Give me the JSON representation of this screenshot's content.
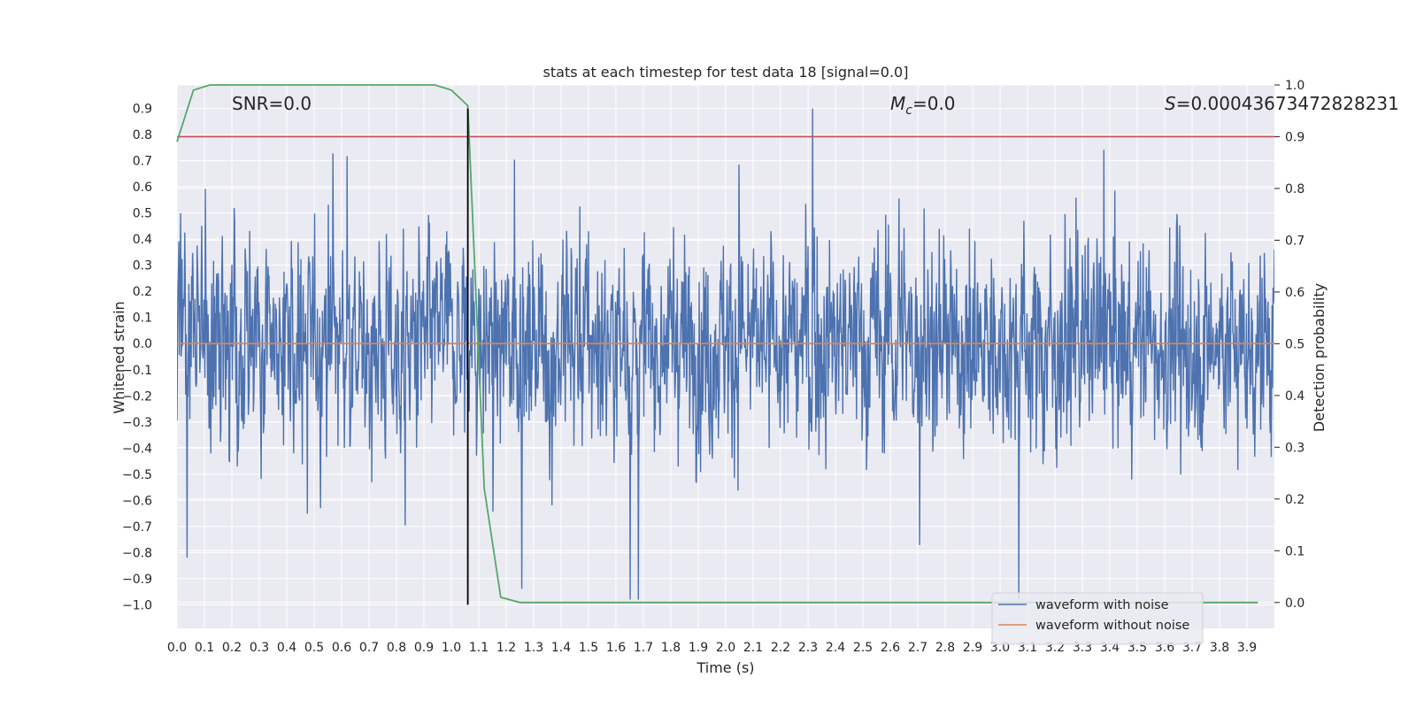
{
  "chart_data": {
    "type": "line",
    "title": "stats at each timestep for test data 18 [signal=0.0]",
    "xlabel": "Time (s)",
    "ylabel_left": "Whitened strain",
    "ylabel_right": "Detection probability",
    "xlim": [
      0.0,
      4.0
    ],
    "ylim_left": [
      -1.09,
      0.99
    ],
    "ylim_right": [
      -0.05,
      1.0
    ],
    "xticks": [
      "0.0",
      "0.1",
      "0.2",
      "0.3",
      "0.4",
      "0.5",
      "0.6",
      "0.7",
      "0.8",
      "0.9",
      "1.0",
      "1.1",
      "1.2",
      "1.3",
      "1.4",
      "1.5",
      "1.6",
      "1.7",
      "1.8",
      "1.9",
      "2.0",
      "2.1",
      "2.2",
      "2.3",
      "2.4",
      "2.5",
      "2.6",
      "2.7",
      "2.8",
      "2.9",
      "3.0",
      "3.1",
      "3.2",
      "3.3",
      "3.4",
      "3.5",
      "3.6",
      "3.7",
      "3.8",
      "3.9"
    ],
    "yticks_left": [
      "0.9",
      "0.8",
      "0.7",
      "0.6",
      "0.5",
      "0.4",
      "0.3",
      "0.2",
      "0.1",
      "0.0",
      "−0.1",
      "−0.2",
      "−0.3",
      "−0.4",
      "−0.5",
      "−0.6",
      "−0.7",
      "−0.8",
      "−0.9",
      "−1.0"
    ],
    "yticks_right": [
      "1.0",
      "0.9",
      "0.8",
      "0.7",
      "0.6",
      "0.5",
      "0.4",
      "0.3",
      "0.2",
      "0.1",
      "0.0"
    ],
    "grid": true,
    "legend_position": "bottom-right",
    "colors": {
      "noisy": "#4c72b0",
      "clean": "#dd8452",
      "probability": "#55a868",
      "threshold": "#c44e52",
      "marker": "#000000",
      "background": "#eaeaf2",
      "grid": "#ffffff"
    },
    "series": [
      {
        "name": "waveform with noise",
        "axis": "left",
        "note_style": "dense noisy waveform sampled at high rate over 0.0–4.0 s, mostly within ±0.5"
      },
      {
        "name": "waveform without noise",
        "axis": "left",
        "x": [
          0.0,
          4.0
        ],
        "y": [
          0.0,
          0.0
        ]
      },
      {
        "axis": "right",
        "x": [
          0.0,
          0.06,
          0.12,
          0.19,
          0.25,
          0.31,
          0.37,
          0.44,
          0.5,
          0.56,
          0.62,
          0.69,
          0.75,
          0.81,
          0.87,
          0.94,
          1.0,
          1.06,
          1.12,
          1.18,
          1.25,
          1.31,
          1.37,
          1.44,
          1.5,
          1.56,
          1.62,
          1.69,
          1.75,
          1.81,
          1.87,
          1.94,
          2.0,
          2.06,
          2.12,
          2.19,
          2.25,
          2.31,
          2.37,
          2.44,
          2.5,
          2.56,
          2.62,
          2.69,
          2.75,
          2.81,
          2.87,
          2.94,
          3.0,
          3.06,
          3.12,
          3.19,
          3.25,
          3.31,
          3.37,
          3.44,
          3.5,
          3.56,
          3.62,
          3.69,
          3.75,
          3.81,
          3.87,
          3.94
        ],
        "y": [
          0.89,
          0.99,
          1.0,
          1.0,
          1.0,
          1.0,
          1.0,
          1.0,
          1.0,
          1.0,
          1.0,
          1.0,
          1.0,
          1.0,
          1.0,
          1.0,
          0.99,
          0.96,
          0.22,
          0.01,
          0.0,
          0.0,
          0.0,
          0.0,
          0.0,
          0.0,
          0.0,
          0.0,
          0.0,
          0.0,
          0.0,
          0.0,
          0.0,
          0.0,
          0.0,
          0.0,
          0.0,
          0.0,
          0.0,
          0.0,
          0.0,
          0.0,
          0.0,
          0.0,
          0.0,
          0.0,
          0.0,
          0.0,
          0.0,
          0.0,
          0.0,
          0.0,
          0.0,
          0.0,
          0.0,
          0.0,
          0.0,
          0.0,
          0.0,
          0.0,
          0.0,
          0.0,
          0.0,
          0.0
        ]
      }
    ],
    "threshold": {
      "axis": "right",
      "y": 0.9
    },
    "marker_line": {
      "x": 1.06,
      "y_from": -1.0,
      "y_to": 0.9
    },
    "annotations": {
      "snr": "SNR=0.0",
      "mc_symbol": "M",
      "mc_sub": "c",
      "mc_value": "=0.0",
      "s_symbol": "S",
      "s_value": "=0.00043673472828231"
    }
  }
}
